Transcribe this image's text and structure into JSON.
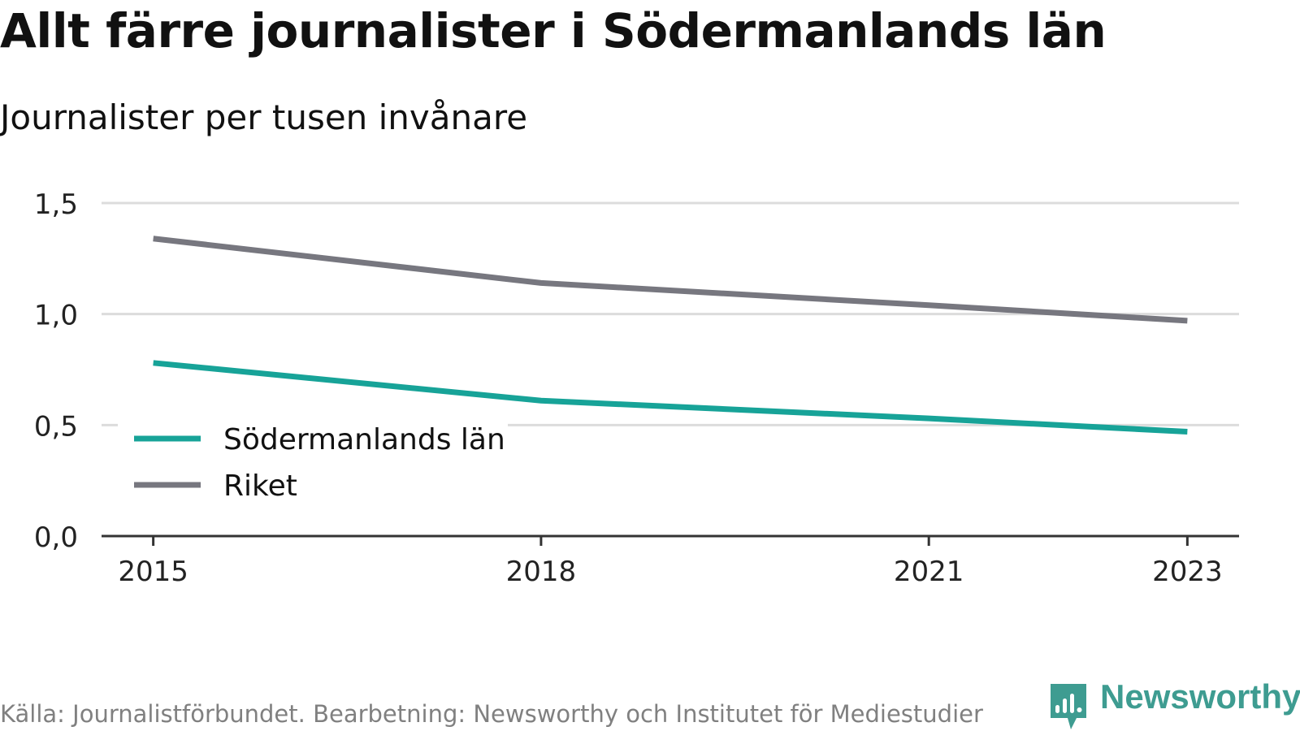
{
  "chart_data": {
    "type": "line",
    "title": "Allt färre journalister i Södermanlands län",
    "subtitle": "Journalister per tusen invånare",
    "x": [
      "2015",
      "2018",
      "2021",
      "2023"
    ],
    "x_values": [
      2015,
      2018,
      2021,
      2023
    ],
    "x_range": [
      2014.6,
      2023.4
    ],
    "yticks": [
      0,
      0.5,
      1.0,
      1.5
    ],
    "ytick_labels": [
      "0,0",
      "0,5",
      "1,0",
      "1,5"
    ],
    "ylim": [
      0,
      1.5
    ],
    "grid": true,
    "legend_position": "bottom-left",
    "series": [
      {
        "name": "Södermanlands län",
        "color": "#17a398",
        "values": [
          0.78,
          0.61,
          0.53,
          0.47
        ]
      },
      {
        "name": "Riket",
        "color": "#77777f",
        "values": [
          1.34,
          1.14,
          1.04,
          0.97
        ]
      }
    ],
    "source": "Källa: Journalistförbundet. Bearbetning: Newsworthy och Institutet för Mediestudier"
  },
  "brand": {
    "name": "Newsworthy",
    "icon": "newsworthy-logo-icon",
    "color": "#3e9c91"
  }
}
